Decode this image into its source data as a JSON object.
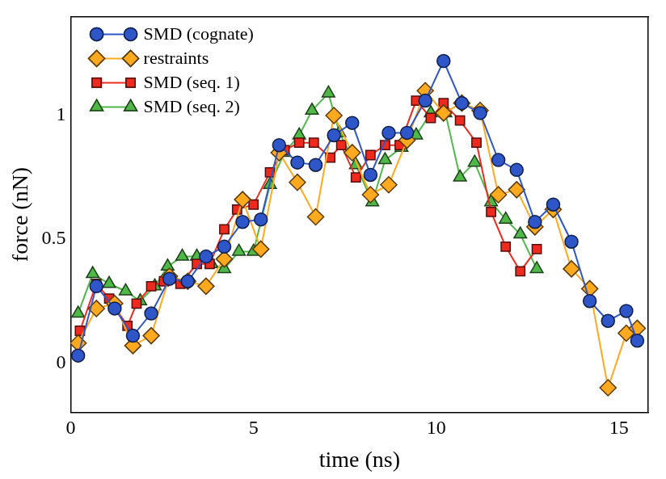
{
  "chart_data": {
    "type": "line",
    "x_label": "time (ns)",
    "y_label": "force (nN)",
    "xlim": [
      0,
      15.8
    ],
    "xticks": [
      0,
      5,
      10,
      15
    ],
    "ylim": [
      -0.2,
      1.4
    ],
    "yticks": [
      0,
      0.5,
      1
    ],
    "grid": false,
    "legend": "upper left",
    "series": [
      {
        "name": "SMD (cognate)",
        "color": "#2f56c8",
        "marker": "circle",
        "line_style": "solid",
        "x": [
          0.2,
          0.7,
          1.2,
          1.7,
          2.2,
          2.7,
          3.2,
          3.7,
          4.2,
          4.7,
          5.2,
          5.7,
          6.2,
          6.7,
          7.2,
          7.7,
          8.2,
          8.7,
          9.2,
          9.7,
          10.2,
          10.7,
          11.2,
          11.7,
          12.2,
          12.7,
          13.2,
          13.7,
          14.2,
          14.7,
          15.2,
          15.5
        ],
        "values": [
          0.03,
          0.31,
          0.22,
          0.11,
          0.2,
          0.34,
          0.33,
          0.43,
          0.47,
          0.57,
          0.58,
          0.88,
          0.81,
          0.8,
          0.92,
          0.97,
          0.76,
          0.93,
          0.93,
          1.06,
          1.22,
          1.05,
          1.01,
          0.82,
          0.78,
          0.57,
          0.64,
          0.49,
          0.25,
          0.17,
          0.21,
          0.09
        ]
      },
      {
        "name": "restraints",
        "color": "#ffa91f",
        "marker": "diamond",
        "line_style": "solid",
        "x": [
          0.2,
          0.7,
          1.2,
          1.7,
          2.2,
          2.7,
          3.2,
          3.7,
          4.2,
          4.7,
          5.2,
          5.7,
          6.2,
          6.7,
          7.2,
          7.7,
          8.2,
          8.7,
          9.2,
          9.7,
          10.2,
          10.7,
          11.2,
          11.7,
          12.2,
          12.7,
          13.2,
          13.7,
          14.2,
          14.7,
          15.2,
          15.5
        ],
        "values": [
          0.08,
          0.22,
          0.24,
          0.07,
          0.11,
          0.35,
          0.33,
          0.31,
          0.42,
          0.66,
          0.46,
          0.85,
          0.73,
          0.59,
          1.0,
          0.85,
          0.68,
          0.72,
          0.9,
          1.1,
          1.01,
          1.05,
          1.02,
          0.68,
          0.7,
          0.55,
          0.62,
          0.38,
          0.3,
          -0.1,
          0.12,
          0.14
        ]
      },
      {
        "name": "SMD (seq. 1)",
        "color": "#ee2a1e",
        "marker": "square",
        "line_style": "solid",
        "x": [
          0.25,
          0.7,
          1.05,
          1.55,
          1.8,
          2.2,
          2.55,
          3.0,
          3.45,
          3.8,
          4.2,
          4.55,
          5.0,
          5.45,
          5.85,
          6.25,
          6.65,
          7.1,
          7.4,
          7.8,
          8.2,
          8.6,
          9.0,
          9.45,
          9.85,
          10.2,
          10.65,
          11.1,
          11.5,
          11.9,
          12.3,
          12.75
        ],
        "values": [
          0.13,
          0.32,
          0.26,
          0.15,
          0.24,
          0.31,
          0.33,
          0.32,
          0.4,
          0.4,
          0.54,
          0.62,
          0.64,
          0.77,
          0.86,
          0.89,
          0.89,
          0.83,
          0.88,
          0.75,
          0.84,
          0.88,
          0.88,
          1.06,
          0.99,
          1.05,
          0.98,
          0.89,
          0.61,
          0.47,
          0.37,
          0.46
        ]
      },
      {
        "name": "SMD (seq. 2)",
        "color": "#4fb848",
        "marker": "triangle",
        "line_style": "solid",
        "x": [
          0.2,
          0.6,
          1.05,
          1.5,
          1.9,
          2.3,
          2.65,
          3.05,
          3.45,
          3.85,
          4.2,
          4.6,
          5.0,
          5.45,
          5.85,
          6.25,
          6.6,
          7.05,
          7.35,
          7.8,
          8.25,
          8.6,
          9.05,
          9.45,
          9.85,
          10.25,
          10.65,
          11.05,
          11.5,
          11.9,
          12.3,
          12.75
        ],
        "values": [
          0.2,
          0.36,
          0.32,
          0.29,
          0.25,
          0.31,
          0.39,
          0.43,
          0.43,
          0.4,
          0.38,
          0.45,
          0.45,
          0.72,
          0.85,
          0.92,
          1.02,
          1.09,
          0.93,
          0.8,
          0.65,
          0.82,
          0.87,
          0.92,
          1.01,
          1.01,
          0.75,
          0.81,
          0.65,
          0.58,
          0.52,
          0.38
        ]
      }
    ]
  }
}
